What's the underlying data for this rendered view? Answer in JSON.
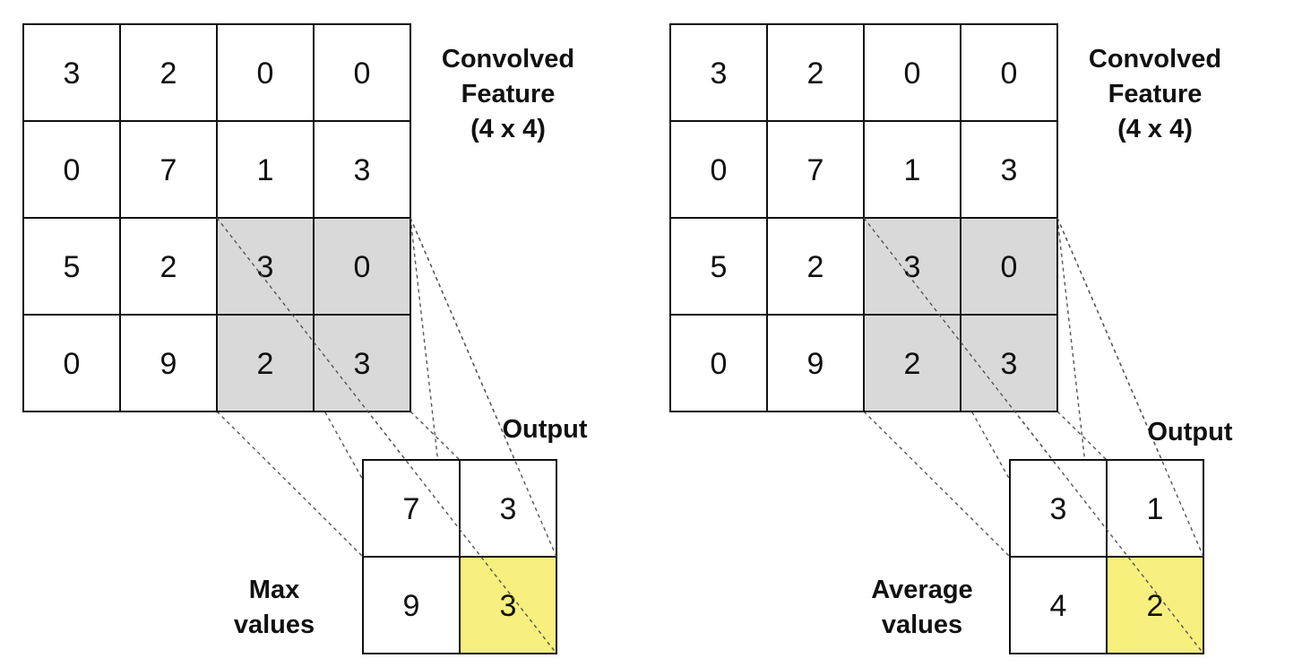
{
  "colors": {
    "highlight": "#d9d9d9",
    "output_highlight": "#f7ef7e",
    "cell": "#ffffff",
    "border": "#111111"
  },
  "panels": [
    {
      "input_label": [
        "Convolved",
        "Feature",
        "(4 x 4)"
      ],
      "input_grid": [
        [
          "3",
          "2",
          "0",
          "0"
        ],
        [
          "0",
          "7",
          "1",
          "3"
        ],
        [
          "5",
          "2",
          "3",
          "0"
        ],
        [
          "0",
          "9",
          "2",
          "3"
        ]
      ],
      "output_label": "Output",
      "output_grid": [
        [
          "7",
          "3"
        ],
        [
          "9",
          "3"
        ]
      ],
      "method_label": [
        "Max",
        "values"
      ]
    },
    {
      "input_label": [
        "Convolved",
        "Feature",
        "(4 x 4)"
      ],
      "input_grid": [
        [
          "3",
          "2",
          "0",
          "0"
        ],
        [
          "0",
          "7",
          "1",
          "3"
        ],
        [
          "5",
          "2",
          "3",
          "0"
        ],
        [
          "0",
          "9",
          "2",
          "3"
        ]
      ],
      "output_label": "Output",
      "output_grid": [
        [
          "3",
          "1"
        ],
        [
          "4",
          "2"
        ]
      ],
      "method_label": [
        "Average",
        "values"
      ]
    }
  ]
}
